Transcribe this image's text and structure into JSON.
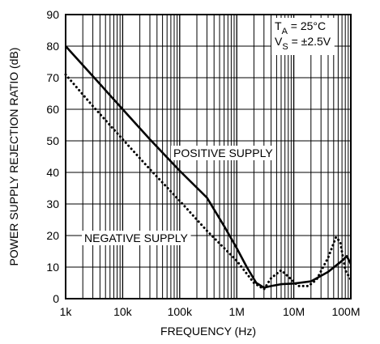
{
  "chart_data": {
    "type": "line",
    "xlabel": "FREQUENCY (Hz)",
    "ylabel": "POWER SUPPLY REJECTION RATIO (dB)",
    "xscale": "log",
    "xlim": [
      1000,
      100000000
    ],
    "ylim": [
      0,
      90
    ],
    "grid": true,
    "x_tick_labels": [
      {
        "value": 1000,
        "label": "1k"
      },
      {
        "value": 10000,
        "label": "10k"
      },
      {
        "value": 100000,
        "label": "100k"
      },
      {
        "value": 1000000,
        "label": "1M"
      },
      {
        "value": 10000000,
        "label": "10M"
      },
      {
        "value": 100000000,
        "label": "100M"
      }
    ],
    "y_ticks": [
      0,
      10,
      20,
      30,
      40,
      50,
      60,
      70,
      80,
      90
    ],
    "conditions": {
      "ta_prefix": "T",
      "ta_sub": "A",
      "ta_rest": " = 25°C",
      "vs_prefix": "V",
      "vs_sub": "S",
      "vs_rest": " = ±2.5V"
    },
    "series": [
      {
        "name": "POSITIVE SUPPLY",
        "style": "solid",
        "points": [
          [
            1000,
            80
          ],
          [
            3000,
            70.5
          ],
          [
            10000,
            60
          ],
          [
            30000,
            50.5
          ],
          [
            100000,
            40.5
          ],
          [
            300000,
            32
          ],
          [
            600000,
            23
          ],
          [
            1000000,
            16
          ],
          [
            1500000,
            10
          ],
          [
            2200000,
            5
          ],
          [
            3000000,
            3.5
          ],
          [
            4000000,
            4
          ],
          [
            6000000,
            4.6
          ],
          [
            10000000,
            4.8
          ],
          [
            20000000,
            5.5
          ],
          [
            40000000,
            8.5
          ],
          [
            70000000,
            12
          ],
          [
            85000000,
            13.5
          ],
          [
            100000000,
            11
          ]
        ]
      },
      {
        "name": "NEGATIVE SUPPLY",
        "style": "dotted",
        "points": [
          [
            1000,
            71
          ],
          [
            3000,
            61
          ],
          [
            10000,
            50.5
          ],
          [
            30000,
            41
          ],
          [
            100000,
            31
          ],
          [
            300000,
            21.5
          ],
          [
            1000000,
            12
          ],
          [
            2000000,
            5
          ],
          [
            3000000,
            3
          ],
          [
            4000000,
            6.5
          ],
          [
            6000000,
            9
          ],
          [
            8000000,
            7
          ],
          [
            12000000,
            4
          ],
          [
            18000000,
            4
          ],
          [
            25000000,
            6
          ],
          [
            40000000,
            13
          ],
          [
            55000000,
            19.5
          ],
          [
            65000000,
            18
          ],
          [
            80000000,
            9
          ],
          [
            100000000,
            6
          ]
        ]
      }
    ]
  }
}
